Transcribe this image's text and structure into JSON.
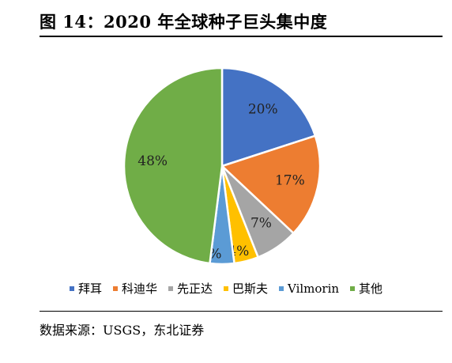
{
  "figure": {
    "title": "图 14：2020 年全球种子巨头集中度",
    "source": "数据来源：USGS，东北证券"
  },
  "chart_data": {
    "type": "pie",
    "title": "",
    "series": [
      {
        "name": "拜耳",
        "value": 20,
        "label": "20%",
        "color": "#4472c4"
      },
      {
        "name": "科迪华",
        "value": 17,
        "label": "17%",
        "color": "#ed7d31"
      },
      {
        "name": "先正达",
        "value": 7,
        "label": "7%",
        "color": "#a5a5a5"
      },
      {
        "name": "巴斯夫",
        "value": 4,
        "label": "4%",
        "color": "#ffc000"
      },
      {
        "name": "Vilmorin",
        "value": 4,
        "label": "4%",
        "color": "#5b9bd5"
      },
      {
        "name": "其他",
        "value": 48,
        "label": "48%",
        "color": "#70ad47"
      }
    ],
    "start_angle": "12 o'clock",
    "direction": "clockwise",
    "legend": "bottom"
  }
}
